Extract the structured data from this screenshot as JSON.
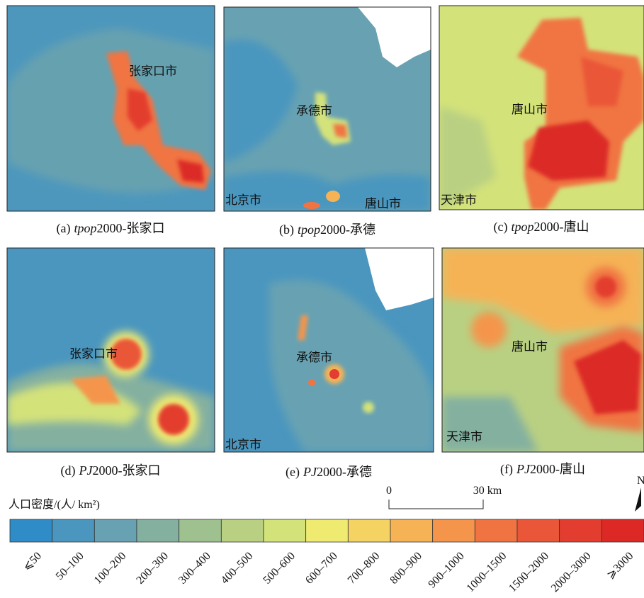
{
  "panels": [
    {
      "caption": {
        "label": "(a)",
        "variable": "tpop",
        "suffix": "2000-张家口"
      },
      "places": [
        "张家口市"
      ]
    },
    {
      "caption": {
        "label": "(b)",
        "variable": "tpop",
        "suffix": "2000-承德"
      },
      "places": [
        "承德市",
        "北京市",
        "唐山市"
      ]
    },
    {
      "caption": {
        "label": "(c)",
        "variable": "tpop",
        "suffix": "2000-唐山"
      },
      "places": [
        "唐山市",
        "天津市"
      ]
    },
    {
      "caption": {
        "label": "(d)",
        "variable": "PJ",
        "suffix": "2000-张家口"
      },
      "places": [
        "张家口市"
      ]
    },
    {
      "caption": {
        "label": "(e)",
        "variable": "PJ",
        "suffix": "2000-承德"
      },
      "places": [
        "承德市",
        "北京市"
      ]
    },
    {
      "caption": {
        "label": "(f)",
        "variable": "PJ",
        "suffix": "2000-唐山"
      },
      "places": [
        "唐山市",
        "天津市"
      ]
    }
  ],
  "legend": {
    "title": "人口密度/(人/ km²)",
    "classes": [
      {
        "label": "⩽50",
        "color": "#2f8cc6"
      },
      {
        "label": "50–100",
        "color": "#4a96bf"
      },
      {
        "label": "100–200",
        "color": "#68a2b2"
      },
      {
        "label": "200–300",
        "color": "#84b0a0"
      },
      {
        "label": "300–400",
        "color": "#9fc08f"
      },
      {
        "label": "400–500",
        "color": "#b9d082"
      },
      {
        "label": "500–600",
        "color": "#d4e27a"
      },
      {
        "label": "600–700",
        "color": "#efeb71"
      },
      {
        "label": "700–800",
        "color": "#f5d362"
      },
      {
        "label": "800–900",
        "color": "#f5b356"
      },
      {
        "label": "900–1000",
        "color": "#f4954b"
      },
      {
        "label": "1000–1500",
        "color": "#f07442"
      },
      {
        "label": "1500–2000",
        "color": "#ea5638"
      },
      {
        "label": "2000–3000",
        "color": "#e33d2f"
      },
      {
        "label": "⩾3000",
        "color": "#dc2926"
      }
    ]
  },
  "scale_bar": {
    "start": "0",
    "end": "30 km"
  },
  "north": "N"
}
